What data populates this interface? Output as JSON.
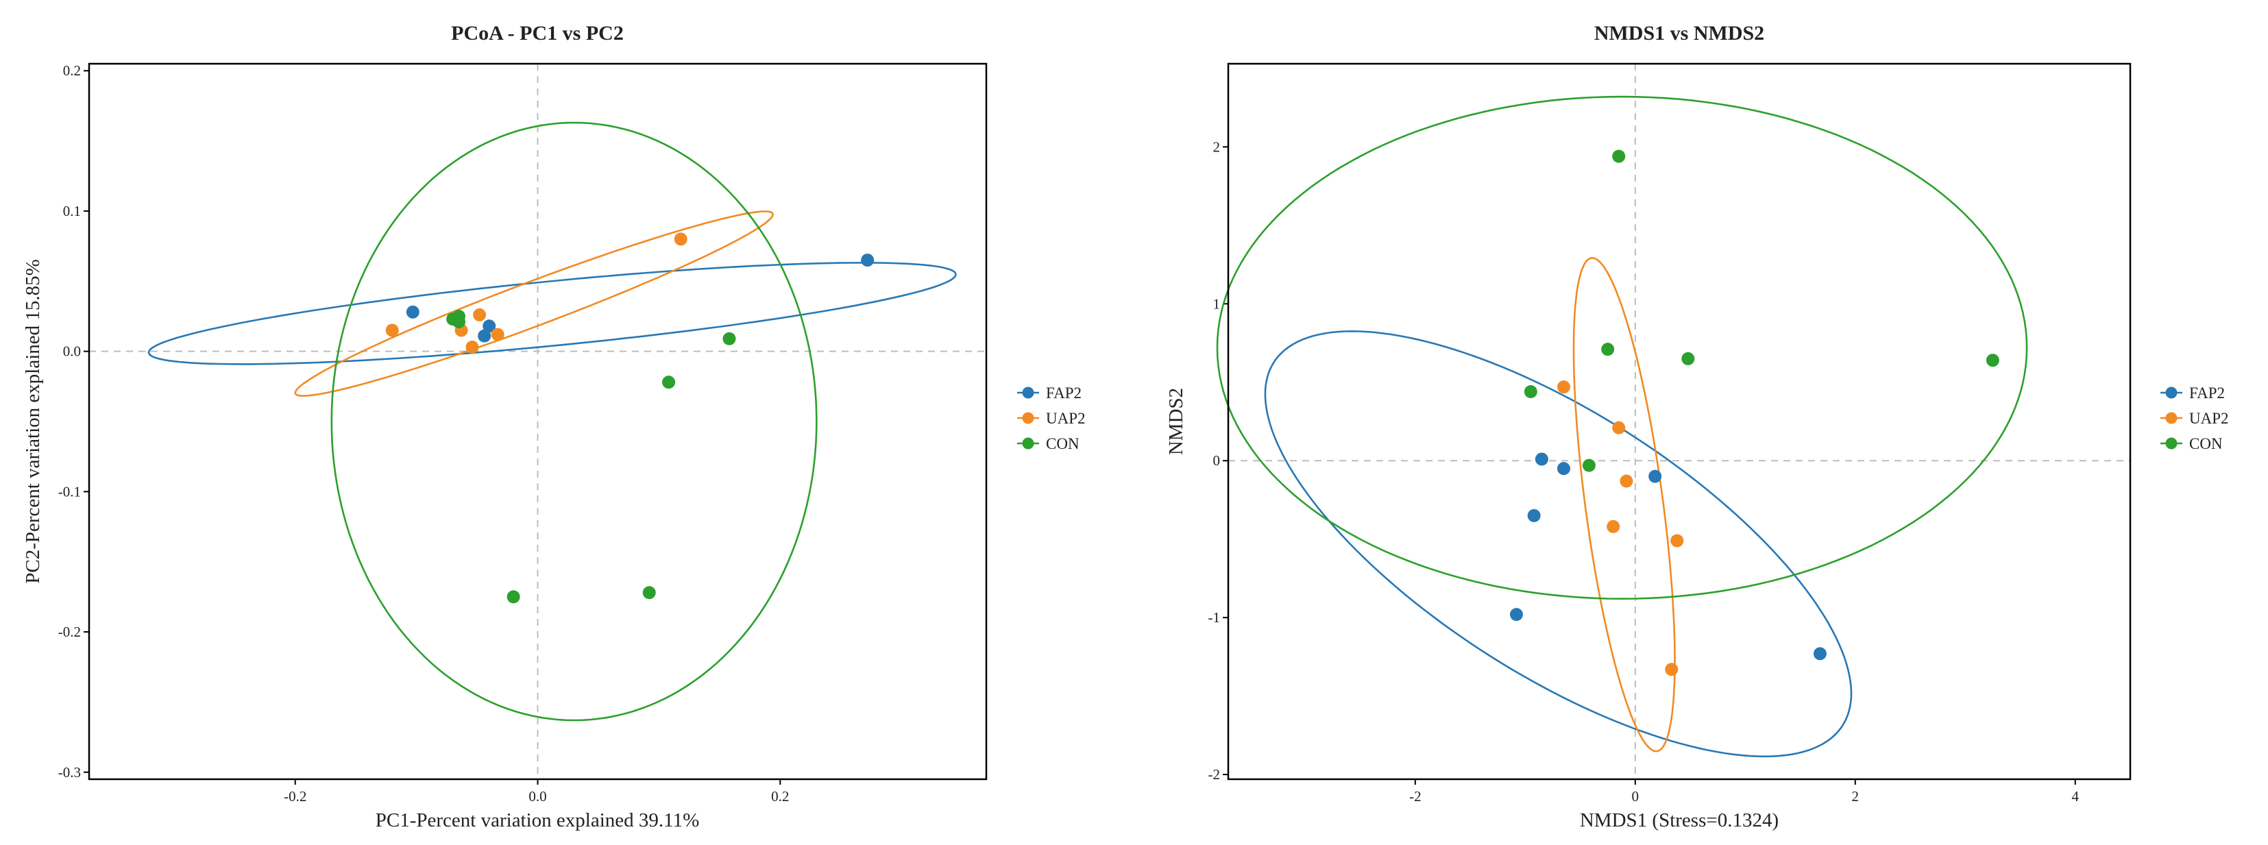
{
  "chart_data": [
    {
      "type": "scatter",
      "title": "PCoA - PC1 vs PC2",
      "xlabel": "PC1-Percent variation explained 39.11%",
      "ylabel": "PC2-Percent variation explained 15.85%",
      "xlim": [
        -0.37,
        0.37
      ],
      "ylim": [
        -0.305,
        0.205
      ],
      "xticks": [
        -0.2,
        0.0,
        0.2
      ],
      "xtick_labels": [
        "-0.2",
        "0.0",
        "0.2"
      ],
      "yticks": [
        0.2,
        0.1,
        0.0,
        -0.1,
        -0.2,
        -0.3
      ],
      "ytick_labels": [
        "0.2",
        "0.1",
        "0.0",
        "-0.1",
        "-0.2",
        "-0.3"
      ],
      "zero_lines": true,
      "legend_position": "right",
      "series": [
        {
          "name": "FAP2",
          "color": "#2878b5",
          "points": [
            [
              -0.103,
              0.028
            ],
            [
              -0.04,
              0.018
            ],
            [
              -0.044,
              0.011
            ],
            [
              0.272,
              0.065
            ]
          ],
          "ellipse": {
            "cx": 0.012,
            "cy": 0.027,
            "rx": 0.334,
            "ry": 0.023,
            "angle_deg": 4.8
          }
        },
        {
          "name": "UAP2",
          "color": "#f28a22",
          "points": [
            [
              -0.12,
              0.015
            ],
            [
              -0.063,
              0.015
            ],
            [
              -0.054,
              0.003
            ],
            [
              -0.048,
              0.026
            ],
            [
              -0.033,
              0.012
            ],
            [
              0.118,
              0.08
            ]
          ],
          "ellipse": {
            "cx": -0.003,
            "cy": 0.034,
            "rx": 0.207,
            "ry": 0.016,
            "angle_deg": 18.0
          }
        },
        {
          "name": "CON",
          "color": "#2ca02c",
          "points": [
            [
              -0.07,
              0.023
            ],
            [
              -0.065,
              0.025
            ],
            [
              -0.065,
              0.021
            ],
            [
              -0.02,
              -0.175
            ],
            [
              0.092,
              -0.172
            ],
            [
              0.108,
              -0.022
            ],
            [
              0.158,
              0.009
            ]
          ],
          "ellipse": {
            "cx": 0.03,
            "cy": -0.05,
            "rx": 0.2,
            "ry": 0.213,
            "angle_deg": 0
          }
        }
      ]
    },
    {
      "type": "scatter",
      "title": "NMDS1 vs NMDS2",
      "xlabel": "NMDS1 (Stress=0.1324)",
      "ylabel": "NMDS2",
      "xlim": [
        -3.7,
        4.5
      ],
      "ylim": [
        -2.03,
        2.53
      ],
      "xticks": [
        -2,
        0,
        2,
        4
      ],
      "xtick_labels": [
        "-2",
        "0",
        "2",
        "4"
      ],
      "yticks": [
        2,
        1,
        0,
        -1,
        -2
      ],
      "ytick_labels": [
        "2",
        "1",
        "0",
        "-1",
        "-2"
      ],
      "zero_lines": true,
      "legend_position": "right",
      "series": [
        {
          "name": "FAP2",
          "color": "#2878b5",
          "points": [
            [
              -0.85,
              0.01
            ],
            [
              -0.65,
              -0.05
            ],
            [
              -0.92,
              -0.35
            ],
            [
              0.18,
              -0.1
            ],
            [
              -1.08,
              -0.98
            ],
            [
              1.68,
              -1.23
            ]
          ],
          "ellipse": {
            "cx": -0.7,
            "cy": -0.53,
            "rx": 2.85,
            "ry": 0.9,
            "angle_deg": -22
          }
        },
        {
          "name": "UAP2",
          "color": "#f28a22",
          "points": [
            [
              -0.65,
              0.47
            ],
            [
              -0.15,
              0.21
            ],
            [
              -0.08,
              -0.13
            ],
            [
              -0.2,
              -0.42
            ],
            [
              0.38,
              -0.51
            ],
            [
              0.33,
              -1.33
            ]
          ],
          "ellipse": {
            "cx": -0.1,
            "cy": -0.28,
            "rx": 1.6,
            "ry": 0.35,
            "angle_deg": -79
          }
        },
        {
          "name": "CON",
          "color": "#2ca02c",
          "points": [
            [
              -0.15,
              1.94
            ],
            [
              -0.25,
              0.71
            ],
            [
              0.48,
              0.65
            ],
            [
              3.25,
              0.64
            ],
            [
              -0.95,
              0.44
            ],
            [
              -0.42,
              -0.03
            ]
          ],
          "ellipse": {
            "cx": -0.12,
            "cy": 0.72,
            "rx": 3.68,
            "ry": 1.6,
            "angle_deg": 0
          }
        }
      ]
    }
  ]
}
